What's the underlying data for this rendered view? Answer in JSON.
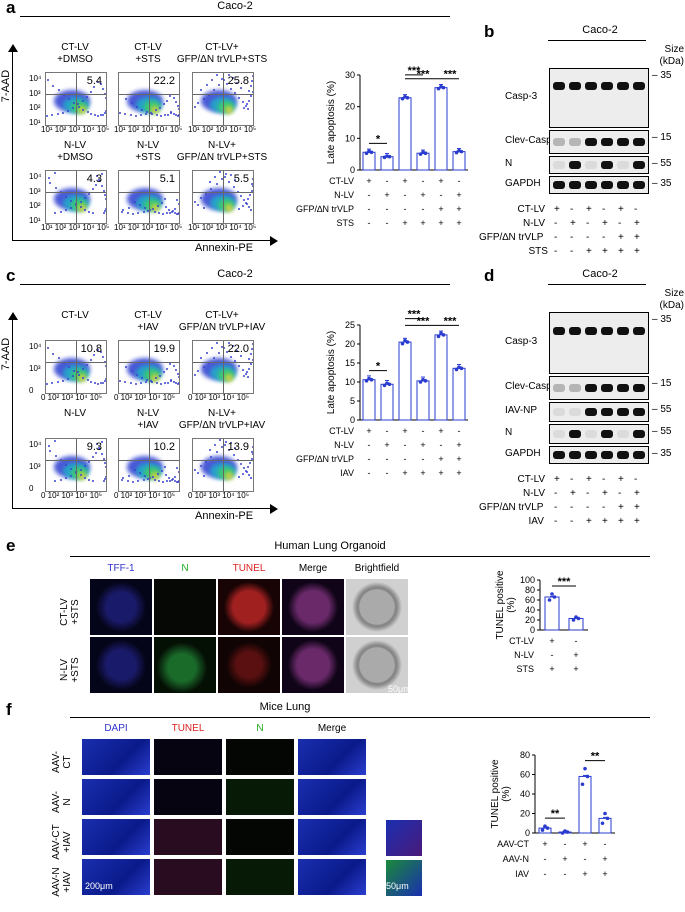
{
  "panel_a": {
    "label": "a",
    "title": "Caco-2",
    "y_axis": "7-AAD",
    "x_axis": "Annexin-PE",
    "xticks": "10¹ 10² 10³ 10⁴ 10⁵",
    "yticks": [
      "10⁴",
      "10³",
      "10²",
      "10¹"
    ],
    "plots": [
      {
        "cond": "CT-LV\n+DMSO",
        "pct": "5.4"
      },
      {
        "cond": "CT-LV\n+STS",
        "pct": "22.2"
      },
      {
        "cond": "CT-LV+\nGFP/ΔN trVLP+STS",
        "pct": "25.8"
      },
      {
        "cond": "N-LV\n+DMSO",
        "pct": "4.3"
      },
      {
        "cond": "N-LV\n+STS",
        "pct": "5.1"
      },
      {
        "cond": "N-LV+\nGFP/ΔN trVLP+STS",
        "pct": "5.5"
      }
    ]
  },
  "panel_b": {
    "label": "b",
    "title": "Caco-2",
    "size_label": "Size\n(kDa)",
    "bands": [
      "Casp-3",
      "Clev-Casp-3",
      "N",
      "GAPDH"
    ],
    "markers": [
      "35",
      "15",
      "55",
      "35"
    ],
    "rows": [
      {
        "name": "CT-LV",
        "signs": [
          "+",
          "-",
          "+",
          "-",
          "+",
          "-"
        ]
      },
      {
        "name": "N-LV",
        "signs": [
          "-",
          "+",
          "-",
          "+",
          "-",
          "+"
        ]
      },
      {
        "name": "GFP/∆N trVLP",
        "signs": [
          "-",
          "-",
          "-",
          "-",
          "+",
          "+"
        ]
      },
      {
        "name": "STS",
        "signs": [
          "-",
          "-",
          "+",
          "+",
          "+",
          "+"
        ]
      }
    ]
  },
  "panel_c": {
    "label": "c",
    "title": "Caco-2",
    "y_axis": "7-AAD",
    "x_axis": "Annexin-PE",
    "xticks": "0 10² 10³ 10⁴ 10⁵",
    "yticks": [
      "10⁴",
      "10³",
      "0"
    ],
    "plots": [
      {
        "cond": "CT-LV",
        "pct": "10.8"
      },
      {
        "cond": "CT-LV\n+IAV",
        "pct": "19.9"
      },
      {
        "cond": "CT-LV+\nGFP/ΔN trVLP+IAV",
        "pct": "22.0"
      },
      {
        "cond": "N-LV",
        "pct": "9.3"
      },
      {
        "cond": "N-LV\n+IAV",
        "pct": "10.2"
      },
      {
        "cond": "N-LV+\nGFP/ΔN trVLP+IAV",
        "pct": "13.9"
      }
    ]
  },
  "panel_d": {
    "label": "d",
    "title": "Caco-2",
    "size_label": "Size\n(kDa)",
    "bands": [
      "Casp-3",
      "Clev-Casp-3",
      "IAV-NP",
      "N",
      "GAPDH"
    ],
    "markers": [
      "35",
      "15",
      "55",
      "55",
      "35"
    ],
    "rows": [
      {
        "name": "CT-LV",
        "signs": [
          "+",
          "-",
          "+",
          "-",
          "+",
          "-"
        ]
      },
      {
        "name": "N-LV",
        "signs": [
          "-",
          "+",
          "-",
          "+",
          "-",
          "+"
        ]
      },
      {
        "name": "GFP/∆N trVLP",
        "signs": [
          "-",
          "-",
          "-",
          "-",
          "+",
          "+"
        ]
      },
      {
        "name": "IAV",
        "signs": [
          "-",
          "-",
          "+",
          "+",
          "+",
          "+"
        ]
      }
    ]
  },
  "panel_e": {
    "label": "e",
    "title": "Human Lung Organoid",
    "columns": [
      "TFF-1",
      "N",
      "TUNEL",
      "Merge",
      "Brightfield"
    ],
    "column_colors": [
      "#3333cc",
      "#22aa22",
      "#dd2222",
      "#000000",
      "#000000"
    ],
    "rows": [
      "CT-LV\n+STS",
      "N-LV\n+STS"
    ],
    "scale_bar": "50μm"
  },
  "panel_f": {
    "label": "f",
    "title": "Mice Lung",
    "columns": [
      "DAPI",
      "TUNEL",
      "N",
      "Merge"
    ],
    "column_colors": [
      "#3333cc",
      "#dd2222",
      "#22aa22",
      "#000000"
    ],
    "rows": [
      "AAV-\nCT",
      "AAV-\nN",
      "AAV-CT\n+IAV",
      "AAV-N\n+IAV"
    ],
    "scale_bar_main": "200μm",
    "scale_bar_inset": "50μm"
  },
  "chart_data": [
    {
      "type": "bar",
      "panel": "a",
      "ylabel": "Late apoptosis (%)",
      "ylim": [
        0,
        30
      ],
      "yticks": [
        0,
        10,
        20,
        30
      ],
      "values": [
        5.6,
        4.2,
        22.8,
        5.3,
        26.0,
        5.8
      ],
      "points": [
        [
          5.3,
          5.9,
          5.6
        ],
        [
          4.0,
          4.4,
          4.2
        ],
        [
          22.5,
          23.1,
          22.8
        ],
        [
          5.0,
          5.6,
          5.3
        ],
        [
          25.7,
          26.3,
          26.0
        ],
        [
          5.5,
          6.1,
          5.8
        ]
      ],
      "significance": [
        {
          "pair": [
            1,
            2
          ],
          "label": "*"
        },
        {
          "pair": [
            3,
            4
          ],
          "label": "***"
        },
        {
          "pair": [
            3,
            5
          ],
          "label": "***"
        },
        {
          "pair": [
            5,
            6
          ],
          "label": "***"
        }
      ],
      "condition_rows": [
        {
          "name": "CT-LV",
          "signs": [
            "+",
            "-",
            "+",
            "-",
            "+",
            "-"
          ]
        },
        {
          "name": "N-LV",
          "signs": [
            "-",
            "+",
            "-",
            "+",
            "-",
            "+"
          ]
        },
        {
          "name": "GFP/∆N trVLP",
          "signs": [
            "-",
            "-",
            "-",
            "-",
            "+",
            "+"
          ]
        },
        {
          "name": "STS",
          "signs": [
            "-",
            "-",
            "+",
            "+",
            "+",
            "+"
          ]
        }
      ]
    },
    {
      "type": "bar",
      "panel": "c",
      "ylabel": "Late apoptosis (%)",
      "ylim": [
        0,
        25
      ],
      "yticks": [
        0,
        5,
        10,
        15,
        20,
        25
      ],
      "values": [
        10.6,
        9.4,
        20.5,
        10.3,
        22.4,
        13.6
      ],
      "points": [
        [
          10.3,
          10.9,
          10.6
        ],
        [
          9.1,
          9.7,
          9.4
        ],
        [
          20.1,
          20.9,
          20.5
        ],
        [
          10.0,
          10.6,
          10.3
        ],
        [
          22.0,
          22.8,
          22.4
        ],
        [
          13.3,
          13.9,
          13.6
        ]
      ],
      "significance": [
        {
          "pair": [
            1,
            2
          ],
          "label": "*"
        },
        {
          "pair": [
            3,
            4
          ],
          "label": "***"
        },
        {
          "pair": [
            3,
            5
          ],
          "label": "***"
        },
        {
          "pair": [
            5,
            6
          ],
          "label": "***"
        }
      ],
      "condition_rows": [
        {
          "name": "CT-LV",
          "signs": [
            "+",
            "-",
            "+",
            "-",
            "+",
            "-"
          ]
        },
        {
          "name": "N-LV",
          "signs": [
            "-",
            "+",
            "-",
            "+",
            "-",
            "+"
          ]
        },
        {
          "name": "GFP/∆N trVLP",
          "signs": [
            "-",
            "-",
            "-",
            "-",
            "+",
            "+"
          ]
        },
        {
          "name": "IAV",
          "signs": [
            "-",
            "-",
            "+",
            "+",
            "+",
            "+"
          ]
        }
      ]
    },
    {
      "type": "bar",
      "panel": "e",
      "ylabel": "TUNEL positive\n(%)",
      "ylim": [
        0,
        100
      ],
      "yticks": [
        0,
        20,
        40,
        60,
        80,
        100
      ],
      "values": [
        66,
        23
      ],
      "points": [
        [
          60,
          72,
          66
        ],
        [
          20,
          26,
          23
        ]
      ],
      "significance": [
        {
          "pair": [
            1,
            2
          ],
          "label": "***"
        }
      ],
      "condition_rows": [
        {
          "name": "CT-LV",
          "signs": [
            "+",
            "-"
          ]
        },
        {
          "name": "N-LV",
          "signs": [
            "-",
            "+"
          ]
        },
        {
          "name": "STS",
          "signs": [
            "+",
            "+"
          ]
        }
      ]
    },
    {
      "type": "bar",
      "panel": "f",
      "ylabel": "TUNEL positive\n(%)",
      "ylim": [
        0,
        80
      ],
      "yticks": [
        0,
        20,
        40,
        60,
        80
      ],
      "values": [
        5,
        1,
        58,
        15
      ],
      "points": [
        [
          3,
          7,
          5
        ],
        [
          0,
          2,
          1
        ],
        [
          50,
          66,
          58
        ],
        [
          10,
          20,
          15
        ]
      ],
      "significance": [
        {
          "pair": [
            1,
            2
          ],
          "label": "**"
        },
        {
          "pair": [
            3,
            4
          ],
          "label": "**"
        }
      ],
      "condition_rows": [
        {
          "name": "AAV-CT",
          "signs": [
            "+",
            "-",
            "+",
            "-"
          ]
        },
        {
          "name": "AAV-N",
          "signs": [
            "-",
            "+",
            "-",
            "+"
          ]
        },
        {
          "name": "IAV",
          "signs": [
            "-",
            "-",
            "+",
            "+"
          ]
        }
      ]
    }
  ]
}
